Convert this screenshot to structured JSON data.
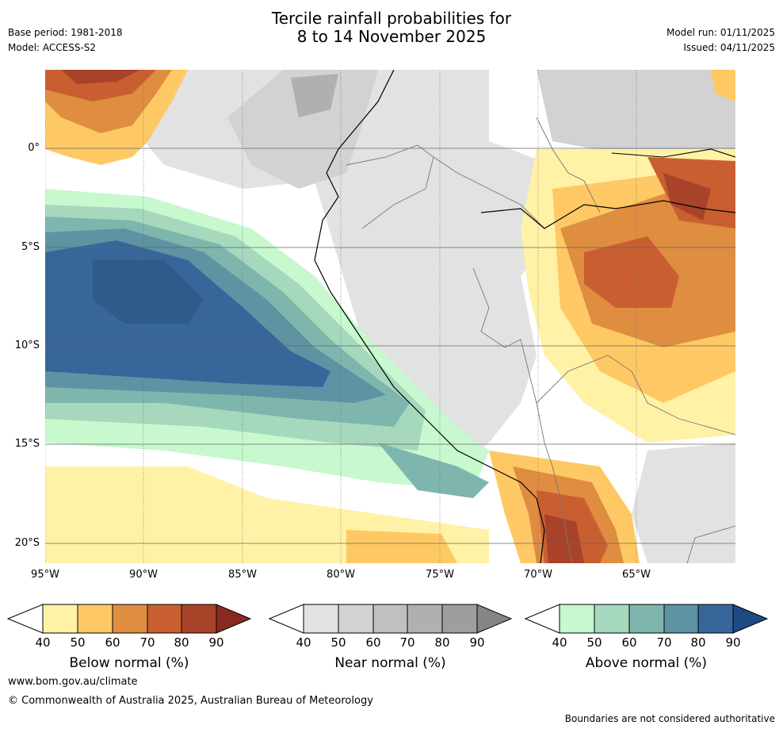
{
  "title": {
    "line1": "Tercile rainfall probabilities for",
    "line2": "8 to 14 November 2025"
  },
  "meta": {
    "base_period": "Base period: 1981-2018",
    "model": "Model: ACCESS-S2",
    "model_run": "Model run: 01/11/2025",
    "issued": "Issued: 04/11/2025"
  },
  "map": {
    "lat_labels": [
      "0°",
      "5°S",
      "10°S",
      "15°S",
      "20°S"
    ],
    "lon_labels": [
      "95°W",
      "90°W",
      "85°W",
      "80°W",
      "75°W",
      "70°W",
      "65°W"
    ]
  },
  "colorbars": [
    {
      "title": "Below normal (%)",
      "ticks": [
        "40",
        "50",
        "60",
        "70",
        "80",
        "90"
      ],
      "colors": [
        "#fff2a6",
        "#fec964",
        "#df8d41",
        "#c95f30",
        "#a8432a",
        "#882a1f"
      ]
    },
    {
      "title": "Near normal (%)",
      "ticks": [
        "40",
        "50",
        "60",
        "70",
        "80",
        "90"
      ],
      "colors": [
        "#e2e2e2",
        "#d2d2d2",
        "#c0c0c0",
        "#b0b0b0",
        "#9e9e9e",
        "#858585"
      ]
    },
    {
      "title": "Above normal (%)",
      "ticks": [
        "40",
        "50",
        "60",
        "70",
        "80",
        "90"
      ],
      "colors": [
        "#c7f8ce",
        "#a5d8bd",
        "#7eb6ae",
        "#5d93a3",
        "#36669a",
        "#1c4b84"
      ]
    }
  ],
  "footer": {
    "website": "www.bom.gov.au/climate",
    "copyright": "© Commonwealth of Australia 2025, Australian Bureau of Meteorology",
    "disclaimer": "Boundaries are not considered authoritative"
  }
}
